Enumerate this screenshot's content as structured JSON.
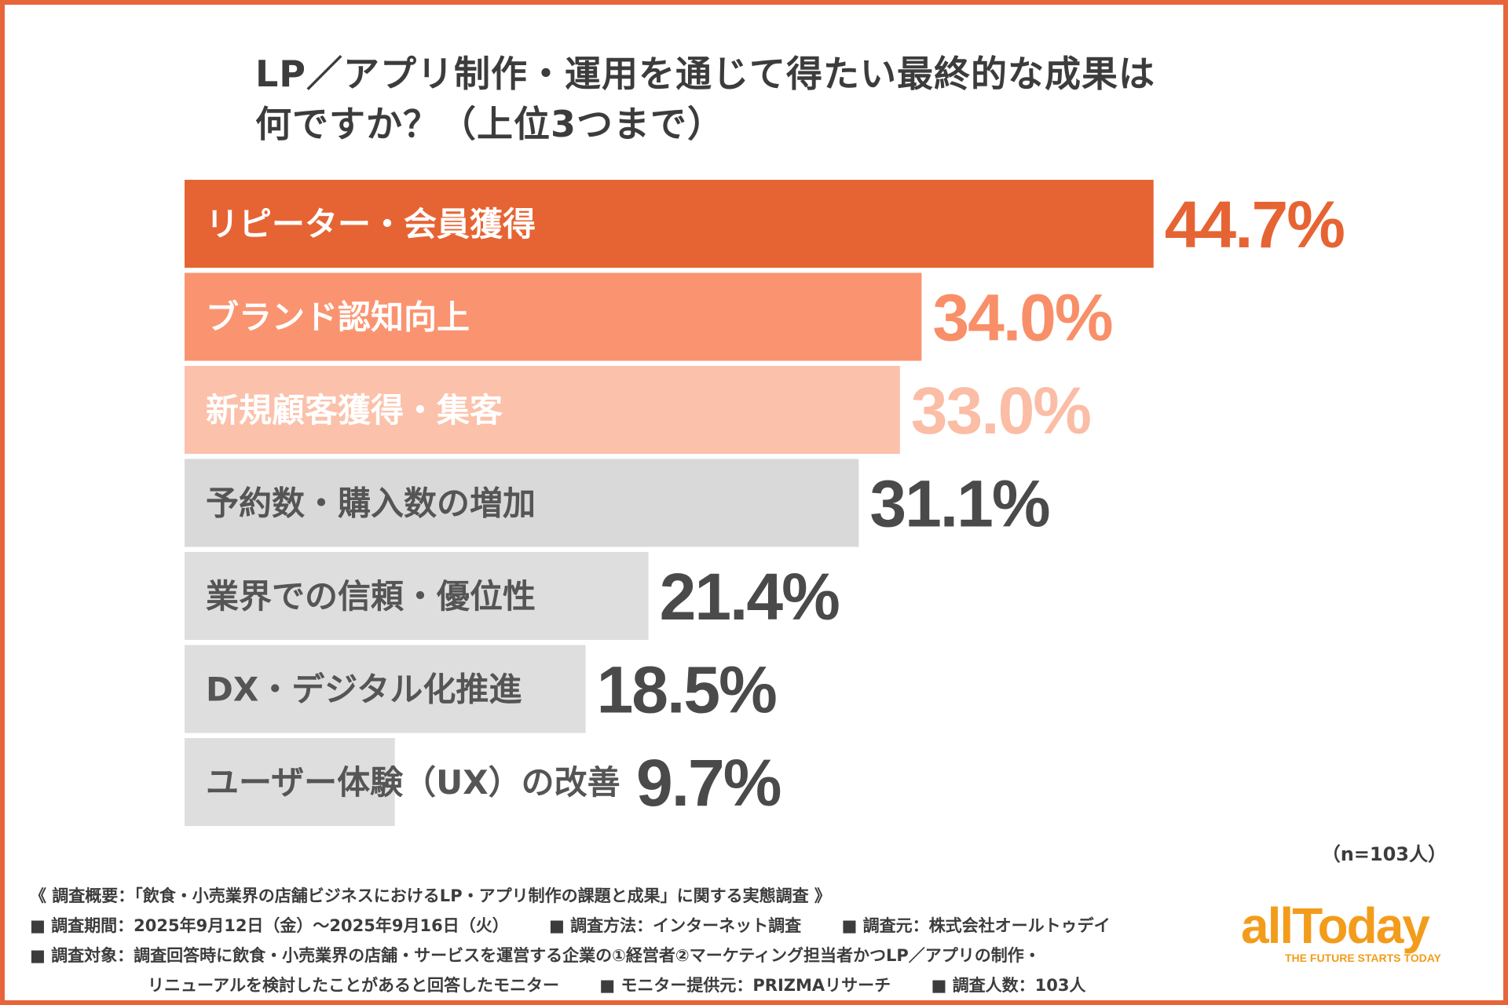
{
  "colors": {
    "frame": "#e8643a",
    "text_dark": "#4a4a4a",
    "logo": "#f39c1c"
  },
  "title": {
    "line1": "LP／アプリ制作・運用を通じて得たい最終的な成果は",
    "line2": "何ですか？（上位3つまで）"
  },
  "chart_data": {
    "type": "bar",
    "orientation": "horizontal",
    "title": "LP／アプリ制作・運用を通じて得たい最終的な成果は何ですか？（上位3つまで）",
    "xlabel": "",
    "ylabel": "",
    "xlim": [
      0,
      60
    ],
    "unit": "%",
    "categories": [
      "リピーター・会員獲得",
      "ブランド認知向上",
      "新規顧客獲得・集客",
      "予約数・購入数の増加",
      "業界での信頼・優位性",
      "DX・デジタル化推進",
      "ユーザー体験（UX）の改善"
    ],
    "values": [
      44.7,
      34.0,
      33.0,
      31.1,
      21.4,
      18.5,
      9.7
    ],
    "value_labels": [
      "44.7%",
      "34.0%",
      "33.0%",
      "31.1%",
      "21.4%",
      "18.5%",
      "9.7%"
    ],
    "bar_colors": [
      "#e66433",
      "#fa9470",
      "#fbc1aa",
      "#d9d9d9",
      "#dedede",
      "#dedede",
      "#dedede"
    ],
    "label_colors": [
      "#ffffff",
      "#ffffff",
      "#ffffff",
      "#555555",
      "#555555",
      "#555555",
      "#555555"
    ],
    "value_colors": [
      "#e66433",
      "#f88f68",
      "#fbbda5",
      "#4a4a4a",
      "#4a4a4a",
      "#4a4a4a",
      "#4a4a4a"
    ],
    "sample_size": "（n=103人）"
  },
  "footer": {
    "overview": "《 調査概要：「飲食・小売業界の店舗ビジネスにおけるLP・アプリ制作の課題と成果」に関する実態調査 》",
    "period": "■ 調査期間：2025年9月12日（金）〜2025年9月16日（火）",
    "method": "■ 調査方法：インターネット調査",
    "source": "■ 調査元：株式会社オールトゥデイ",
    "target_line1": "■ 調査対象：調査回答時に飲食・小売業界の店舗・サービスを運営する企業の①経営者②マーケティング担当者かつLP／アプリの制作・",
    "target_line2": "リニューアルを検討したことがあると回答したモニター",
    "provider": "■ モニター提供元：PRIZMAリサーチ",
    "count": "■ 調査人数：103人"
  },
  "logo": {
    "wordmark": "allToday",
    "tagline": "THE FUTURE STARTS TODAY"
  }
}
